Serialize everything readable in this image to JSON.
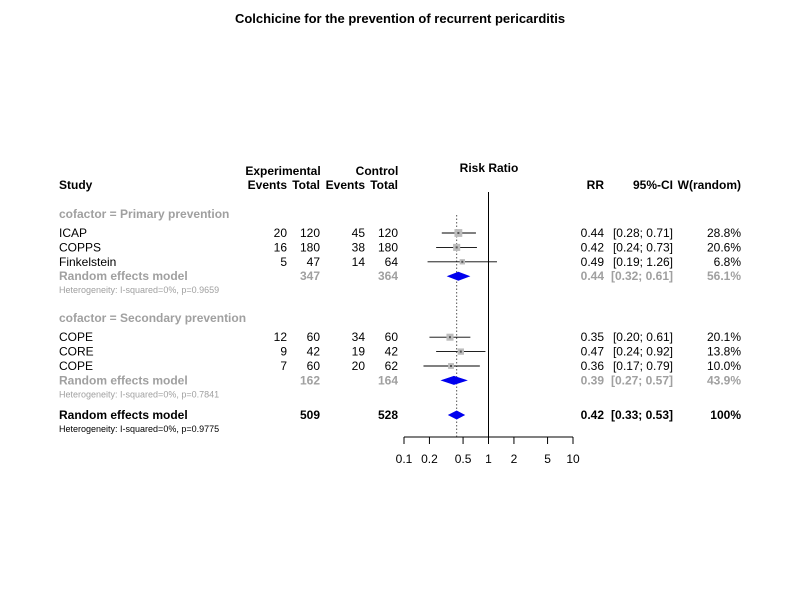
{
  "chart_data": {
    "type": "forest",
    "title": "Colchicine for the prevention of recurrent pericarditis",
    "axis_label": "Risk Ratio",
    "scale": "log",
    "ticks": [
      0.1,
      0.2,
      0.5,
      1,
      2,
      5,
      10
    ],
    "tick_labels": [
      "0.1",
      "0.2",
      "0.5",
      "1",
      "2",
      "5",
      "10"
    ],
    "headers": {
      "experimental": "Experimental",
      "control": "Control",
      "study": "Study",
      "events": "Events",
      "total": "Total",
      "rr": "RR",
      "ci": "95%-CI",
      "weight": "W(random)"
    },
    "groups": [
      {
        "label": "cofactor = Primary prevention",
        "studies": [
          {
            "name": "ICAP",
            "e_events": "20",
            "e_total": "120",
            "c_events": "45",
            "c_total": "120",
            "rr": 0.44,
            "lo": 0.28,
            "hi": 0.71,
            "rr_text": "0.44",
            "ci_text": "[0.28; 0.71]",
            "weight_text": "28.8%",
            "weight": 28.8
          },
          {
            "name": "COPPS",
            "e_events": "16",
            "e_total": "180",
            "c_events": "38",
            "c_total": "180",
            "rr": 0.42,
            "lo": 0.24,
            "hi": 0.73,
            "rr_text": "0.42",
            "ci_text": "[0.24; 0.73]",
            "weight_text": "20.6%",
            "weight": 20.6
          },
          {
            "name": "Finkelstein",
            "e_events": "5",
            "e_total": "47",
            "c_events": "14",
            "c_total": "64",
            "rr": 0.49,
            "lo": 0.19,
            "hi": 1.26,
            "rr_text": "0.49",
            "ci_text": "[0.19; 1.26]",
            "weight_text": "6.8%",
            "weight": 6.8
          }
        ],
        "summary": {
          "label": "Random effects model",
          "e_total": "347",
          "c_total": "364",
          "rr": 0.44,
          "lo": 0.32,
          "hi": 0.61,
          "rr_text": "0.44",
          "ci_text": "[0.32; 0.61]",
          "weight_text": "56.1%"
        },
        "heterogeneity": "Heterogeneity: I-squared=0%, p=0.9659"
      },
      {
        "label": "cofactor = Secondary prevention",
        "studies": [
          {
            "name": "COPE",
            "e_events": "12",
            "e_total": "60",
            "c_events": "34",
            "c_total": "60",
            "rr": 0.35,
            "lo": 0.2,
            "hi": 0.61,
            "rr_text": "0.35",
            "ci_text": "[0.20; 0.61]",
            "weight_text": "20.1%",
            "weight": 20.1
          },
          {
            "name": "CORE",
            "e_events": "9",
            "e_total": "42",
            "c_events": "19",
            "c_total": "42",
            "rr": 0.47,
            "lo": 0.24,
            "hi": 0.92,
            "rr_text": "0.47",
            "ci_text": "[0.24; 0.92]",
            "weight_text": "13.8%",
            "weight": 13.8
          },
          {
            "name": "COPE",
            "e_events": "7",
            "e_total": "60",
            "c_events": "20",
            "c_total": "62",
            "rr": 0.36,
            "lo": 0.17,
            "hi": 0.79,
            "rr_text": "0.36",
            "ci_text": "[0.17; 0.79]",
            "weight_text": "10.0%",
            "weight": 10.0
          }
        ],
        "summary": {
          "label": "Random effects model",
          "e_total": "162",
          "c_total": "164",
          "rr": 0.39,
          "lo": 0.27,
          "hi": 0.57,
          "rr_text": "0.39",
          "ci_text": "[0.27; 0.57]",
          "weight_text": "43.9%"
        },
        "heterogeneity": "Heterogeneity: I-squared=0%, p=0.7841"
      }
    ],
    "overall": {
      "label": "Random effects model",
      "e_total": "509",
      "c_total": "528",
      "rr": 0.42,
      "lo": 0.33,
      "hi": 0.53,
      "rr_text": "0.42",
      "ci_text": "[0.33; 0.53]",
      "weight_text": "100%"
    },
    "overall_heterogeneity": "Heterogeneity: I-squared=0%, p=0.9775",
    "colors": {
      "text": "#000000",
      "subgroup": "#a0a0a0",
      "diamond": "#0000ee",
      "box": "#bdbdbd",
      "line": "#000000"
    }
  }
}
